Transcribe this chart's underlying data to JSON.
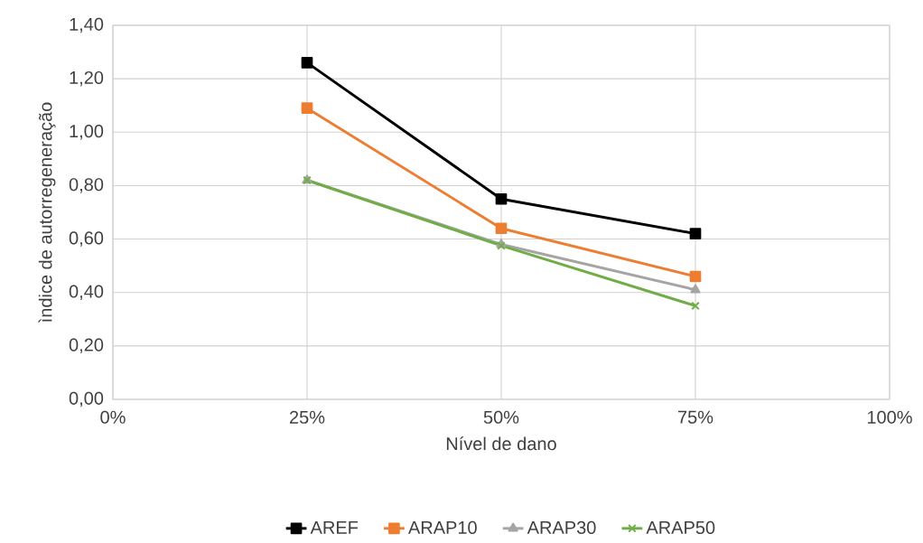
{
  "chart_data": {
    "type": "line",
    "xlabel": "Nível de dano",
    "ylabel": "ìndice de autorregeneração",
    "x": [
      25,
      50,
      75
    ],
    "series": [
      {
        "name": "AREF",
        "color": "#000000",
        "marker": "square",
        "values": [
          1.26,
          0.75,
          0.62
        ]
      },
      {
        "name": "ARAP10",
        "color": "#ed7d31",
        "marker": "square",
        "values": [
          1.09,
          0.64,
          0.46
        ]
      },
      {
        "name": "ARAP30",
        "color": "#a5a5a5",
        "marker": "triangle",
        "values": [
          0.82,
          0.58,
          0.41
        ]
      },
      {
        "name": "ARAP50",
        "color": "#70ad47",
        "marker": "cross",
        "values": [
          0.82,
          0.575,
          0.35
        ]
      }
    ],
    "xlim": [
      0,
      100
    ],
    "xticks": [
      {
        "value": 0,
        "label": "0%"
      },
      {
        "value": 25,
        "label": "25%"
      },
      {
        "value": 50,
        "label": "50%"
      },
      {
        "value": 75,
        "label": "75%"
      },
      {
        "value": 100,
        "label": "100%"
      }
    ],
    "ylim": [
      0,
      1.4
    ],
    "yticks": [
      {
        "value": 0,
        "label": "0,00"
      },
      {
        "value": 0.2,
        "label": "0,20"
      },
      {
        "value": 0.4,
        "label": "0,40"
      },
      {
        "value": 0.6,
        "label": "0,60"
      },
      {
        "value": 0.8,
        "label": "0,80"
      },
      {
        "value": 1.0,
        "label": "1,00"
      },
      {
        "value": 1.2,
        "label": "1,20"
      },
      {
        "value": 1.4,
        "label": "1,40"
      }
    ],
    "grid": true,
    "legend": "bottom",
    "line_style": "solid"
  }
}
